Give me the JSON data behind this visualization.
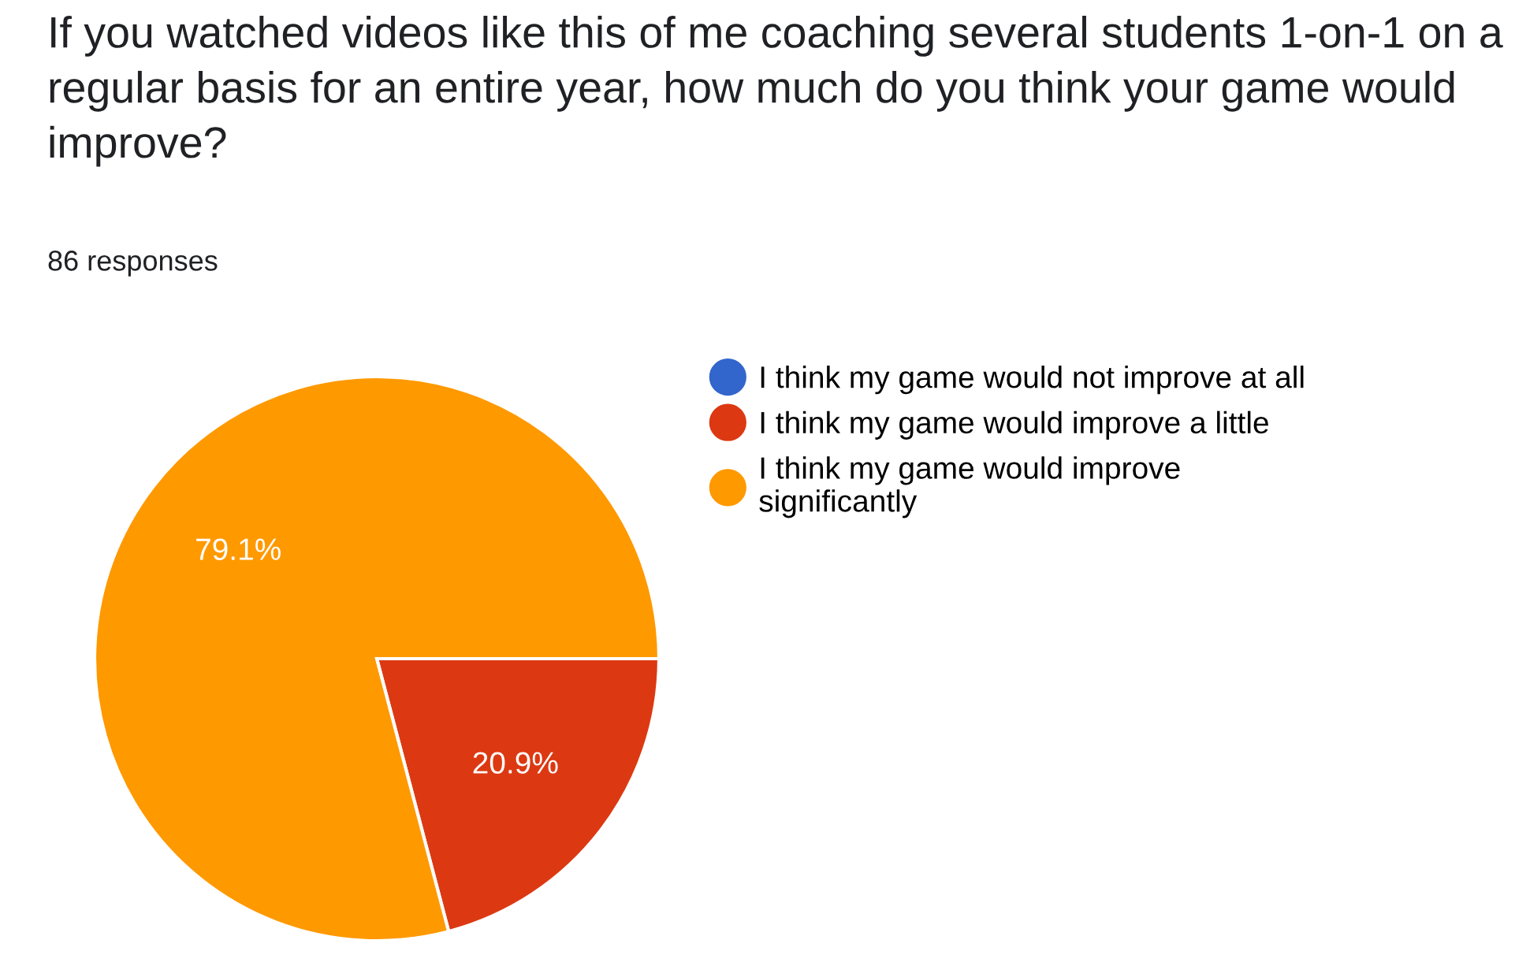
{
  "chart_data": {
    "type": "pie",
    "title": "If you watched videos like this of me coaching several students 1-on-1 on a regular basis for an entire year, how much do you think your game would improve?",
    "subtitle": "86 responses",
    "categories": [
      "I think my game would not improve at all",
      "I think my game would improve a little",
      "I think my game would improve significantly"
    ],
    "values": [
      0,
      20.9,
      79.1
    ],
    "colors": [
      "#3366cc",
      "#dc3912",
      "#ff9900"
    ],
    "value_labels": [
      null,
      "20.9%",
      "79.1%"
    ],
    "legend": "right"
  }
}
